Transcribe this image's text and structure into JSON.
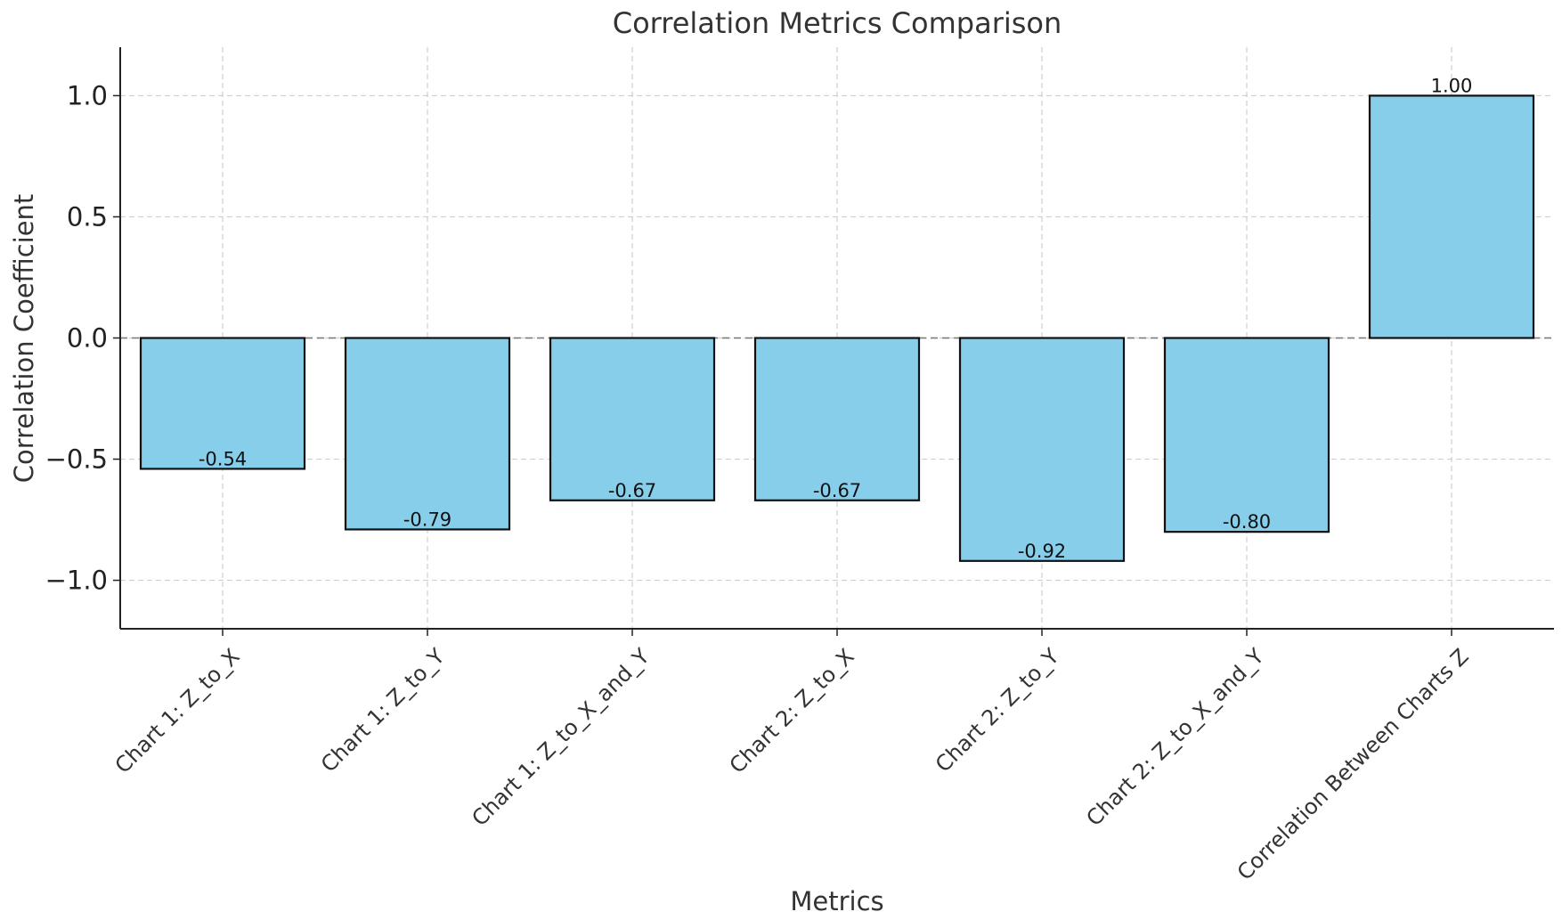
{
  "chart_data": {
    "type": "bar",
    "title": "Correlation Metrics Comparison",
    "xlabel": "Metrics",
    "ylabel": "Correlation Coefficient",
    "categories": [
      "Chart 1: Z_to_X",
      "Chart 1: Z_to_Y",
      "Chart 1: Z_to_X_and_Y",
      "Chart 2: Z_to_X",
      "Chart 2: Z_to_Y",
      "Chart 2: Z_to_X_and_Y",
      "Correlation Between Charts Z"
    ],
    "values": [
      -0.54,
      -0.79,
      -0.67,
      -0.67,
      -0.92,
      -0.8,
      1.0
    ],
    "value_labels": [
      "-0.54",
      "-0.79",
      "-0.67",
      "-0.67",
      "-0.92",
      "-0.80",
      "1.00"
    ],
    "ylim": [
      -1.2,
      1.2
    ],
    "yticks": [
      1.0,
      0.5,
      0.0,
      -0.5,
      -1.0
    ],
    "ytick_labels": [
      "1.0",
      "0.5",
      "0.0",
      "−0.5",
      "−1.0"
    ],
    "grid": true,
    "zero_line": true,
    "colors": {
      "bar_fill": "#87ceeb",
      "bar_edge": "#111111"
    }
  }
}
